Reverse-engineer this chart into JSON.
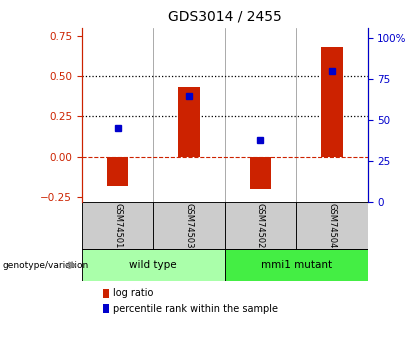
{
  "title": "GDS3014 / 2455",
  "samples": [
    "GSM74501",
    "GSM74503",
    "GSM74502",
    "GSM74504"
  ],
  "log_ratios": [
    -0.18,
    0.43,
    -0.2,
    0.68
  ],
  "percentile_ranks": [
    45,
    65,
    38,
    80
  ],
  "groups": [
    {
      "label": "wild type",
      "indices": [
        0,
        1
      ],
      "color": "#aaffaa"
    },
    {
      "label": "mmi1 mutant",
      "indices": [
        2,
        3
      ],
      "color": "#44ee44"
    }
  ],
  "ylim_left": [
    -0.28,
    0.8
  ],
  "ylim_right": [
    0,
    106.67
  ],
  "yticks_left": [
    -0.25,
    0,
    0.25,
    0.5,
    0.75
  ],
  "yticks_right": [
    0,
    25,
    50,
    75,
    100
  ],
  "hlines": [
    0.25,
    0.5
  ],
  "bar_color": "#cc2200",
  "point_color": "#0000cc",
  "bar_width": 0.3,
  "legend_log_ratio": "log ratio",
  "legend_percentile": "percentile rank within the sample",
  "genotype_label": "genotype/variation",
  "title_fontsize": 10,
  "tick_fontsize": 7.5
}
